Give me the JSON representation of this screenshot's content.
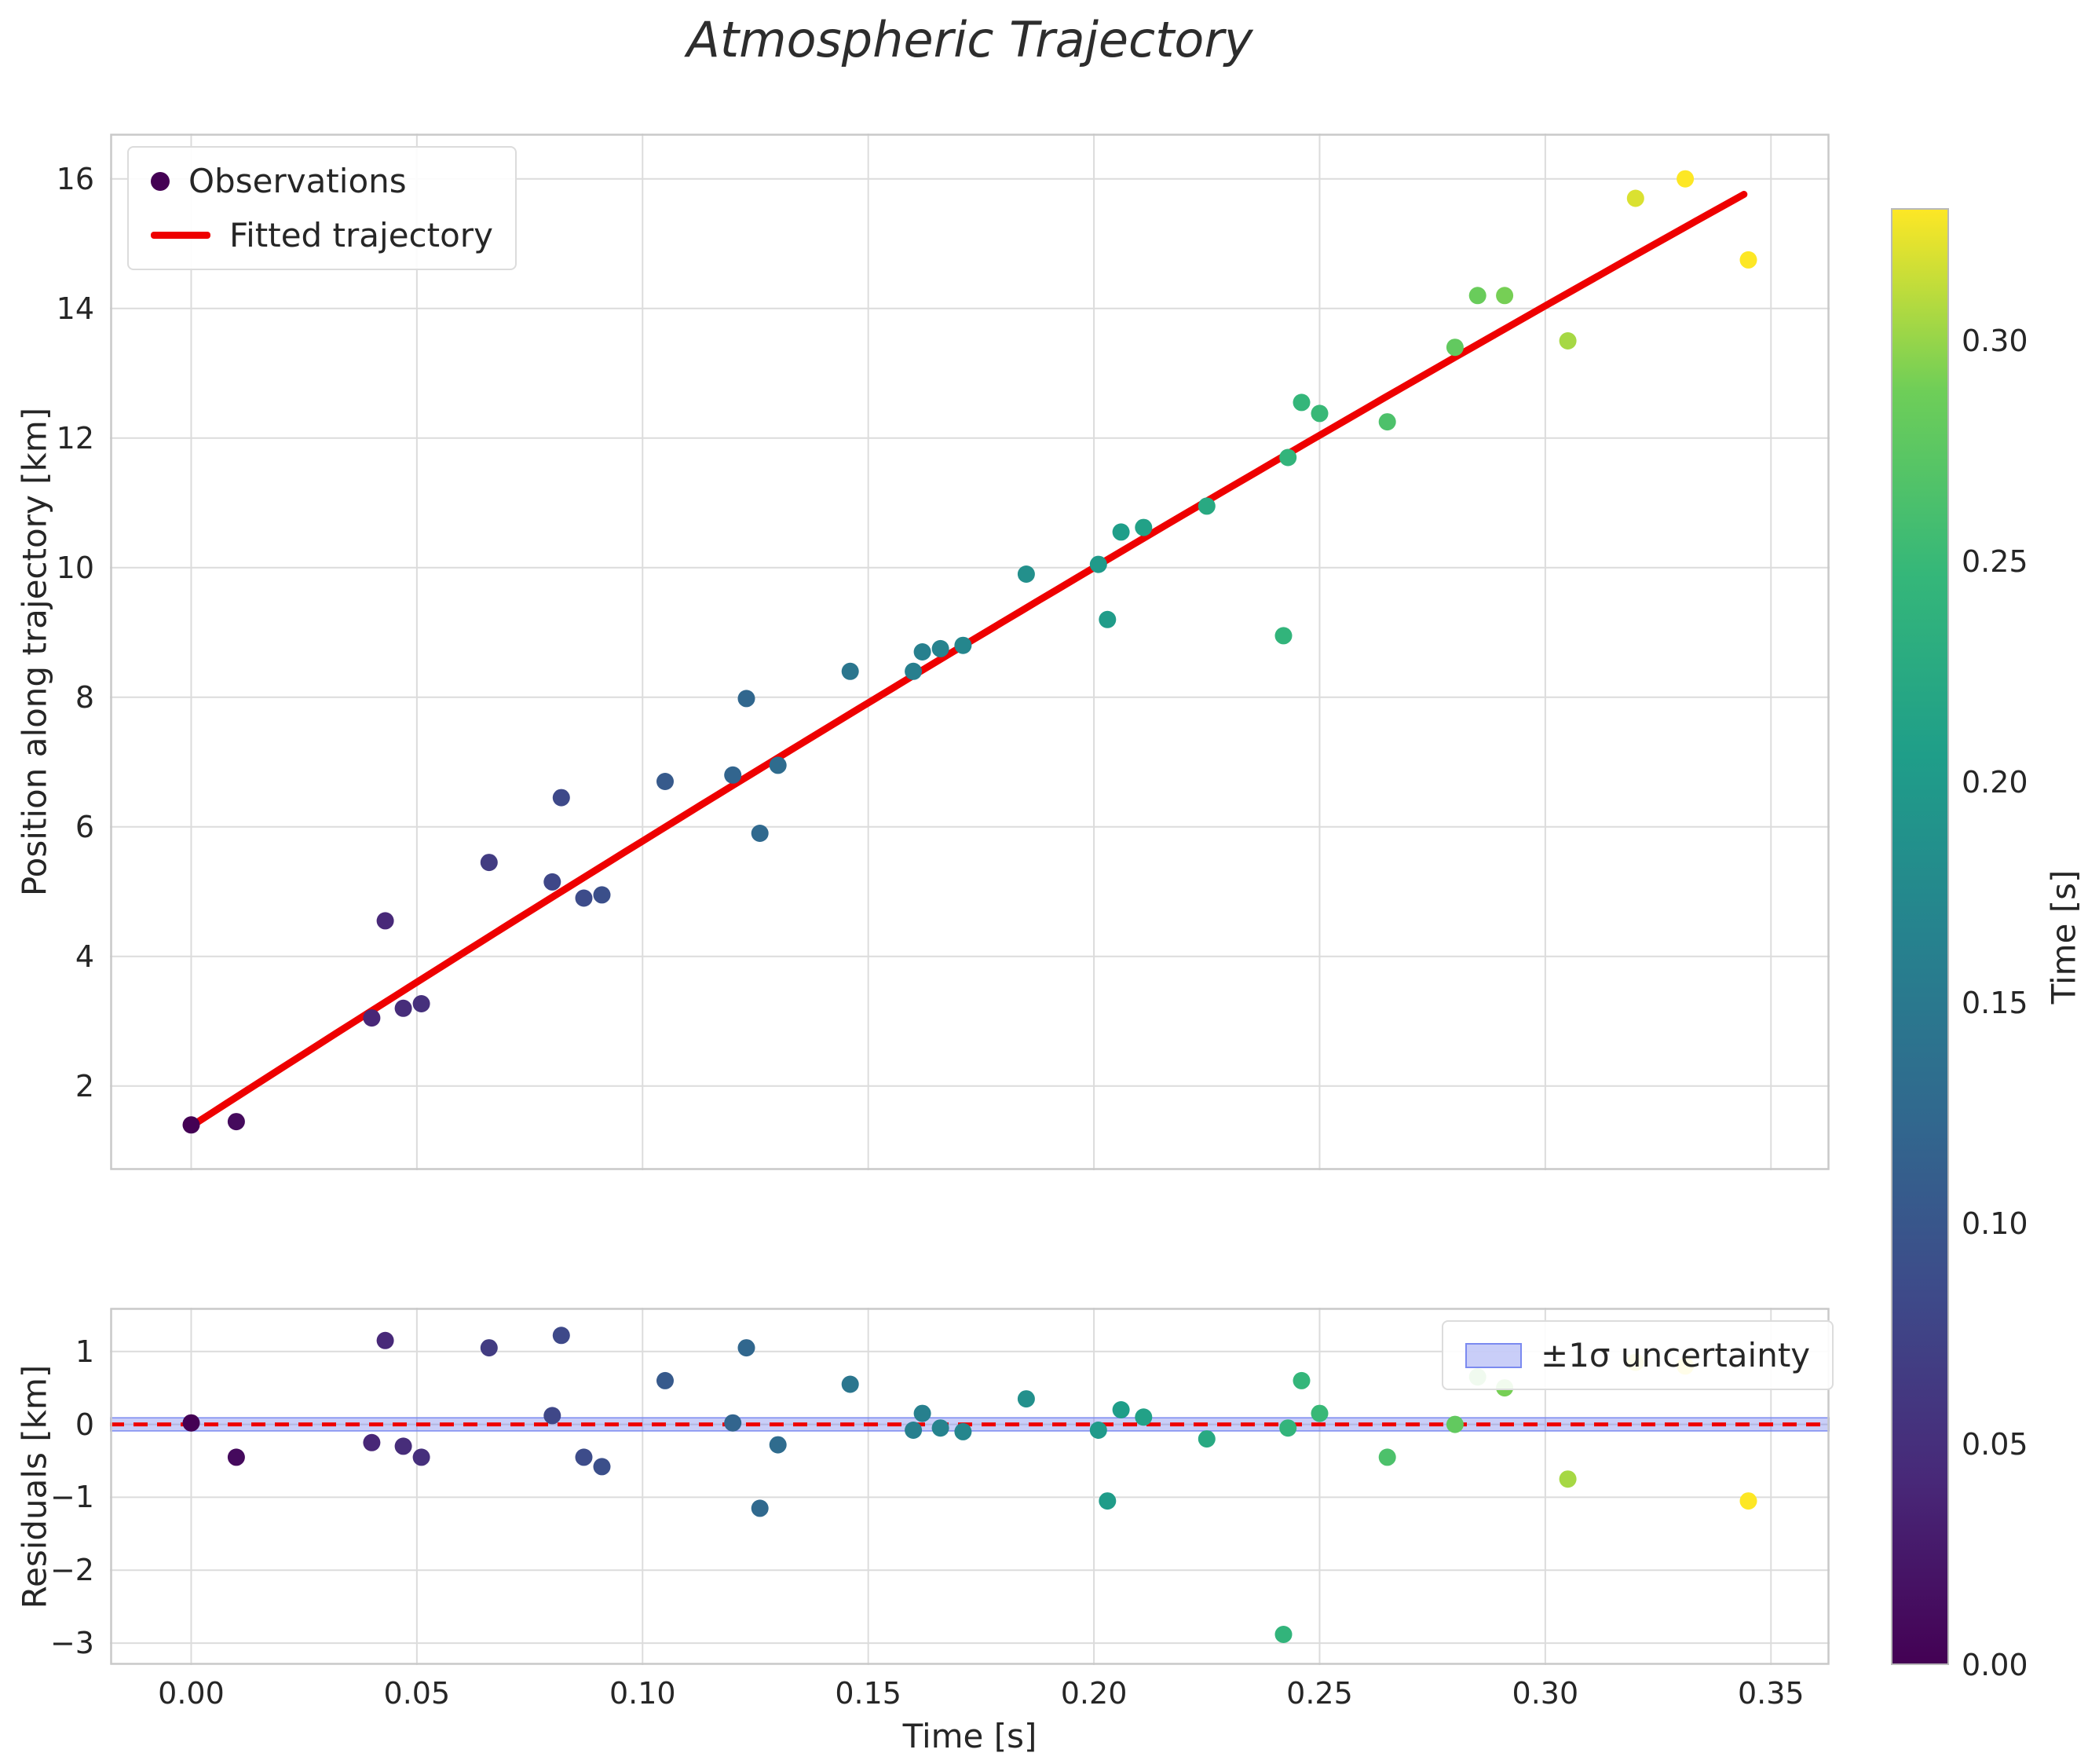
{
  "title": "Atmospheric Trajectory",
  "main_plot": {
    "ylabel": "Position along trajectory [km]",
    "ytick_values": [
      16,
      14,
      12,
      10,
      8,
      6,
      4,
      2
    ],
    "ytick_labels": [
      "16",
      "14",
      "12",
      "10",
      "8",
      "6",
      "4",
      "2"
    ],
    "legend_observations": "Observations",
    "legend_fit": "Fitted trajectory"
  },
  "residual_plot": {
    "ylabel": "Residuals [km]",
    "xlabel": "Time [s]",
    "ytick_values": [
      1,
      0,
      -1,
      -2,
      -3
    ],
    "ytick_labels": [
      "1",
      "0",
      "−1",
      "−2",
      "−3"
    ],
    "xtick_values": [
      0.0,
      0.05,
      0.1,
      0.15,
      0.2,
      0.25,
      0.3,
      0.35
    ],
    "xtick_labels": [
      "0.00",
      "0.05",
      "0.10",
      "0.15",
      "0.20",
      "0.25",
      "0.30",
      "0.35"
    ],
    "legend_band": "±1σ uncertainty"
  },
  "colorbar": {
    "label": "Time [s]",
    "tick_values": [
      0.0,
      0.05,
      0.1,
      0.15,
      0.2,
      0.25,
      0.3
    ],
    "tick_labels": [
      "0.00",
      "0.05",
      "0.10",
      "0.15",
      "0.20",
      "0.25",
      "0.30"
    ]
  },
  "colors": {
    "fit_line": "#ee0000",
    "zero_line": "#ee0000",
    "band_fill": "rgba(100,115,235,0.35)",
    "band_edge": "#7b8af0",
    "grid": "#dcdcdc",
    "spine": "#c9c9c9",
    "text": "#262626",
    "viridis_stops": [
      [
        0.0,
        "#440154"
      ],
      [
        0.125,
        "#482878"
      ],
      [
        0.25,
        "#3e4989"
      ],
      [
        0.375,
        "#31688e"
      ],
      [
        0.5,
        "#26828e"
      ],
      [
        0.625,
        "#1f9e89"
      ],
      [
        0.75,
        "#35b779"
      ],
      [
        0.875,
        "#6ece58"
      ],
      [
        1.0,
        "#fde725"
      ]
    ]
  },
  "chart_data": {
    "type": "scatter",
    "title": "Atmospheric Trajectory",
    "xlabel": "Time [s]",
    "ylabel_main": "Position along trajectory [km]",
    "ylabel_residual": "Residuals [km]",
    "colorbar_label": "Time [s]",
    "color_by": "time",
    "vmin": 0.0,
    "vmax": 0.33,
    "xlim": [
      -0.018,
      0.363
    ],
    "main_ylim": [
      0.7,
      16.7
    ],
    "residual_ylim": [
      -3.3,
      1.6
    ],
    "points_format": [
      "time_s",
      "position_km",
      "residual_km"
    ],
    "points": [
      [
        0.0,
        1.4,
        0.02
      ],
      [
        0.01,
        1.45,
        -0.45
      ],
      [
        0.04,
        3.05,
        -0.25
      ],
      [
        0.043,
        4.55,
        1.15
      ],
      [
        0.047,
        3.2,
        -0.3
      ],
      [
        0.051,
        3.27,
        -0.45
      ],
      [
        0.066,
        5.45,
        1.05
      ],
      [
        0.08,
        5.15,
        0.12
      ],
      [
        0.082,
        6.45,
        1.22
      ],
      [
        0.087,
        4.9,
        -0.45
      ],
      [
        0.091,
        4.95,
        -0.58
      ],
      [
        0.105,
        6.7,
        0.6
      ],
      [
        0.12,
        6.8,
        0.02
      ],
      [
        0.123,
        7.98,
        1.05
      ],
      [
        0.126,
        5.9,
        -1.15
      ],
      [
        0.13,
        6.95,
        -0.28
      ],
      [
        0.146,
        8.4,
        0.55
      ],
      [
        0.16,
        8.4,
        -0.08
      ],
      [
        0.162,
        8.7,
        0.15
      ],
      [
        0.166,
        8.75,
        -0.05
      ],
      [
        0.171,
        8.8,
        -0.1
      ],
      [
        0.185,
        9.9,
        0.35
      ],
      [
        0.201,
        10.05,
        -0.08
      ],
      [
        0.203,
        9.2,
        -1.05
      ],
      [
        0.206,
        10.55,
        0.2
      ],
      [
        0.211,
        10.62,
        0.1
      ],
      [
        0.225,
        10.95,
        -0.2
      ],
      [
        0.242,
        8.95,
        -2.88
      ],
      [
        0.243,
        11.7,
        -0.05
      ],
      [
        0.246,
        12.55,
        0.6
      ],
      [
        0.25,
        12.38,
        0.15
      ],
      [
        0.265,
        12.25,
        -0.45
      ],
      [
        0.28,
        13.4,
        0.0
      ],
      [
        0.285,
        14.2,
        0.65
      ],
      [
        0.291,
        14.2,
        0.5
      ],
      [
        0.305,
        13.5,
        -0.75
      ],
      [
        0.32,
        15.7,
        0.85
      ],
      [
        0.331,
        16.0,
        0.8
      ],
      [
        0.345,
        14.75,
        -1.05
      ]
    ],
    "fit": {
      "label": "Fitted trajectory",
      "type": "quadratic",
      "coeffs": [
        1.38,
        44.9,
        -9.0
      ],
      "t_range": [
        0.0,
        0.347
      ]
    },
    "uncertainty_band": {
      "label": "±1σ uncertainty",
      "center": 0.0,
      "halfwidth_km": 0.09
    }
  }
}
